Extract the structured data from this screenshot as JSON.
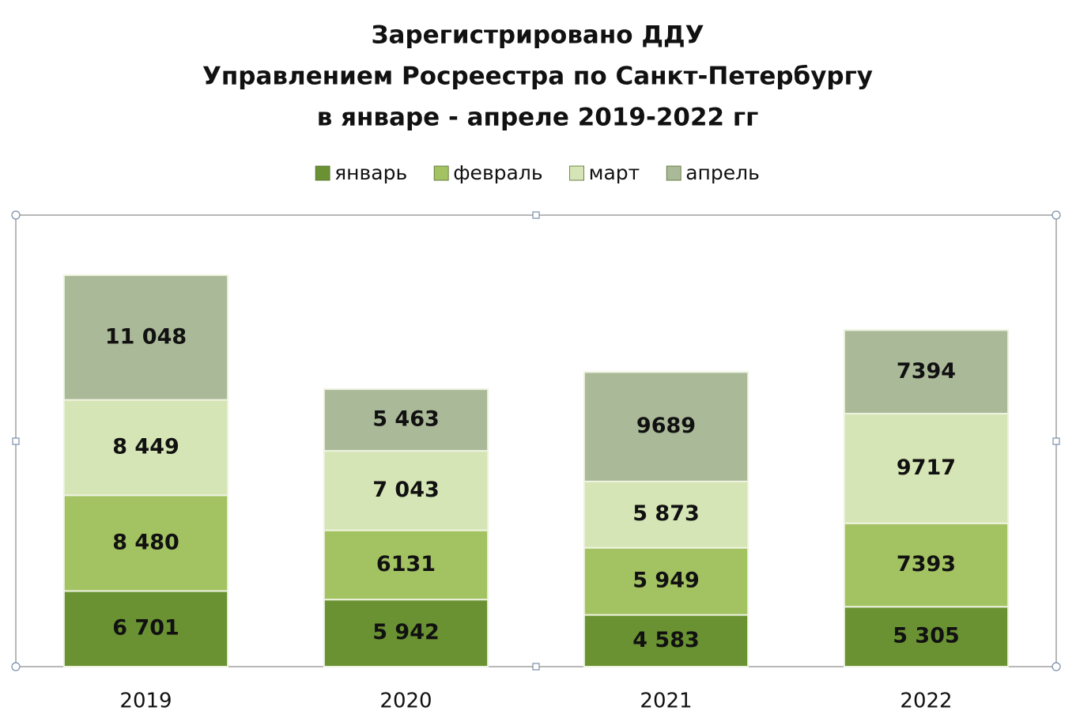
{
  "chart_data": {
    "type": "stacked-bar",
    "title": [
      "Зарегистрировано ДДУ",
      "Управлением Росреестра по Санкт-Петербургу",
      "в январе - апреле 2019-2022 гг"
    ],
    "categories": [
      "2019",
      "2020",
      "2021",
      "2022"
    ],
    "ylim": [
      0,
      40000
    ],
    "legend": "top",
    "series": [
      {
        "name": "январь",
        "color": "#6a9232",
        "values": [
          6701,
          5942,
          4583,
          5305
        ],
        "value_labels": [
          "6 701",
          "5 942",
          "4 583",
          "5 305"
        ]
      },
      {
        "name": "февраль",
        "color": "#a3c262",
        "values": [
          8480,
          6131,
          5949,
          7393
        ],
        "value_labels": [
          "8 480",
          "6131",
          "5 949",
          "7393"
        ]
      },
      {
        "name": "март",
        "color": "#d6e5b5",
        "values": [
          8449,
          7043,
          5873,
          9717
        ],
        "value_labels": [
          "8 449",
          "7 043",
          "5 873",
          "9717"
        ]
      },
      {
        "name": "апрель",
        "color": "#aab998",
        "values": [
          11048,
          5463,
          9689,
          7394
        ],
        "value_labels": [
          "11 048",
          "5 463",
          "9689",
          "7394"
        ]
      }
    ]
  }
}
